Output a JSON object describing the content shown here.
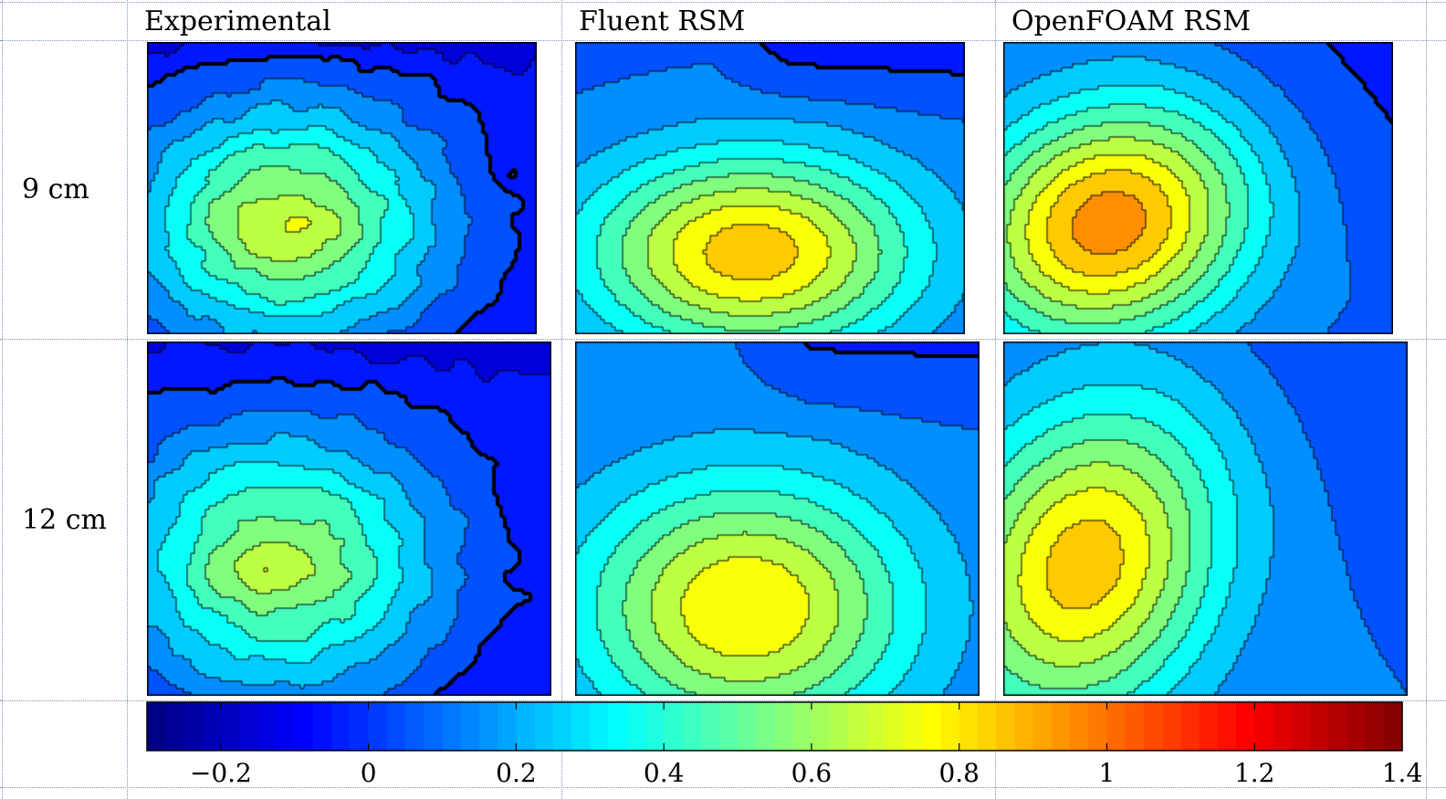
{
  "columns": [
    "Experimental",
    "Fluent RSM",
    "OpenFOAM RSM"
  ],
  "rows": [
    "9 cm",
    "12 cm"
  ],
  "colorbar": {
    "ticks": [
      "−0.2",
      "0",
      "0.2",
      "0.4",
      "0.6",
      "0.8",
      "1",
      "1.2",
      "1.4"
    ],
    "range": [
      -0.3,
      1.4
    ],
    "colormap": "jet"
  },
  "chart_data": {
    "type": "heatmap",
    "title": "",
    "description_grid": "2 rows x 3 columns of filled contour plots",
    "columns": [
      "Experimental",
      "Fluent RSM",
      "OpenFOAM RSM"
    ],
    "rows": [
      "9 cm",
      "12 cm"
    ],
    "color_range": [
      -0.3,
      1.4
    ],
    "colorbar_ticks": [
      -0.2,
      0,
      0.2,
      0.4,
      0.6,
      0.8,
      1,
      1.2,
      1.4
    ],
    "contour_step": 0.1,
    "zero_contour": "bold",
    "panels": [
      {
        "row": "9 cm",
        "column": "Experimental",
        "max_value": 0.82,
        "min_value": -0.05,
        "peak_location": "center-left"
      },
      {
        "row": "9 cm",
        "column": "Fluent RSM",
        "max_value": 0.82,
        "min_value": -0.05,
        "peak_location": "center-lower"
      },
      {
        "row": "9 cm",
        "column": "OpenFOAM RSM",
        "max_value": 0.85,
        "min_value": -0.15,
        "peak_location": "left-middle"
      },
      {
        "row": "12 cm",
        "column": "Experimental",
        "max_value": 0.78,
        "min_value": -0.05,
        "peak_location": "center-left"
      },
      {
        "row": "12 cm",
        "column": "Fluent RSM",
        "max_value": 0.78,
        "min_value": -0.05,
        "peak_location": "center-lower"
      },
      {
        "row": "12 cm",
        "column": "OpenFOAM RSM",
        "max_value": 0.8,
        "min_value": -0.05,
        "peak_location": "left-lower"
      }
    ]
  }
}
